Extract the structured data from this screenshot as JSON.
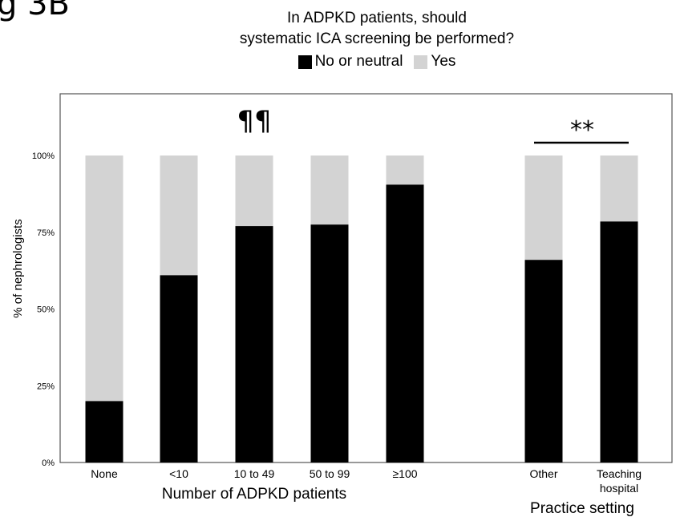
{
  "figure_label": "g 3B",
  "title_line1": "In ADPKD patients, should",
  "title_line2": "systematic ICA screening be performed?",
  "legend": [
    {
      "label": "No or neutral",
      "color": "#000000"
    },
    {
      "label": "Yes",
      "color": "#d3d3d3"
    }
  ],
  "colors": {
    "no_or_neutral": "#000000",
    "yes": "#d3d3d3",
    "frame": "#555555"
  },
  "chart_data": {
    "type": "bar",
    "stacked": true,
    "normalized": true,
    "ylabel": "% of nephrologists",
    "ylim": [
      0,
      100
    ],
    "yticks": [
      "0%",
      "25%",
      "50%",
      "75%",
      "100%"
    ],
    "groups": [
      {
        "xlabel": "Number of ADPKD patients",
        "categories": [
          "None",
          "<10",
          "10 to 49",
          "50 to 99",
          "≥100"
        ],
        "annotation": "¶¶"
      },
      {
        "xlabel": "Practice setting",
        "categories": [
          "Other",
          "Teaching hospital"
        ],
        "annotation": "**"
      }
    ],
    "series": [
      {
        "name": "No or neutral",
        "values": [
          20,
          61,
          77,
          77.5,
          90.5,
          66,
          78.5
        ]
      },
      {
        "name": "Yes",
        "values": [
          80,
          39,
          23,
          22.5,
          9.5,
          34,
          21.5
        ]
      }
    ],
    "grid": false,
    "legend_position": "top"
  }
}
